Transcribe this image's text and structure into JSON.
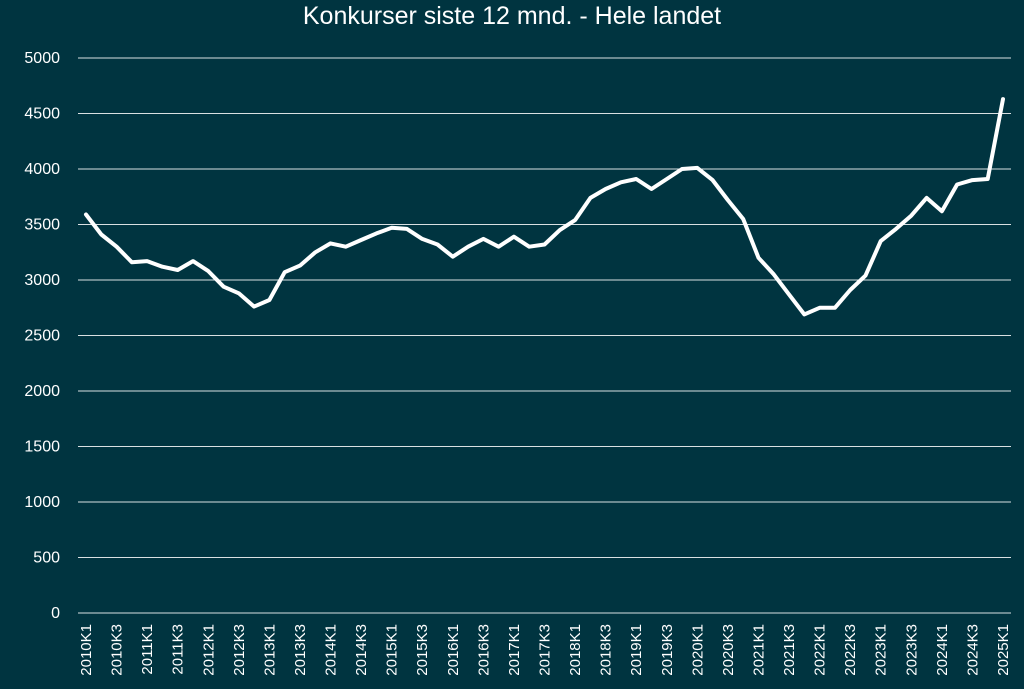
{
  "chart_data": {
    "type": "line",
    "title": "Konkurser siste 12 mnd. - Hele landet",
    "xlabel": "",
    "ylabel": "",
    "ylim": [
      0,
      5000
    ],
    "yticks": [
      0,
      500,
      1000,
      1500,
      2000,
      2500,
      3000,
      3500,
      4000,
      4500,
      5000
    ],
    "grid": true,
    "legend": "none",
    "colors": {
      "background": "#003440",
      "line": "#ffffff",
      "grid": "#ffffff",
      "text": "#ffffff"
    },
    "tick_labels": [
      "2010K1",
      "2010K3",
      "2011K1",
      "2011K3",
      "2012K1",
      "2012K3",
      "2013K1",
      "2013K3",
      "2014K1",
      "2014K3",
      "2015K1",
      "2015K3",
      "2016K1",
      "2016K3",
      "2017K1",
      "2017K3",
      "2018K1",
      "2018K3",
      "2019K1",
      "2019K3",
      "2020K1",
      "2020K3",
      "2021K1",
      "2021K3",
      "2022K1",
      "2022K3",
      "2023K1",
      "2023K3",
      "2024K1",
      "2024K3",
      "2025K1"
    ],
    "categories": [
      "2010K1",
      "2010K2",
      "2010K3",
      "2010K4",
      "2011K1",
      "2011K2",
      "2011K3",
      "2011K4",
      "2012K1",
      "2012K2",
      "2012K3",
      "2012K4",
      "2013K1",
      "2013K2",
      "2013K3",
      "2013K4",
      "2014K1",
      "2014K2",
      "2014K3",
      "2014K4",
      "2015K1",
      "2015K2",
      "2015K3",
      "2015K4",
      "2016K1",
      "2016K2",
      "2016K3",
      "2016K4",
      "2017K1",
      "2017K2",
      "2017K3",
      "2017K4",
      "2018K1",
      "2018K2",
      "2018K3",
      "2018K4",
      "2019K1",
      "2019K2",
      "2019K3",
      "2019K4",
      "2020K1",
      "2020K2",
      "2020K3",
      "2020K4",
      "2021K1",
      "2021K2",
      "2021K3",
      "2021K4",
      "2022K1",
      "2022K2",
      "2022K3",
      "2022K4",
      "2023K1",
      "2023K2",
      "2023K3",
      "2023K4",
      "2024K1",
      "2024K2",
      "2024K3",
      "2024K4",
      "2025K1"
    ],
    "values": [
      3590,
      3410,
      3300,
      3160,
      3170,
      3120,
      3090,
      3170,
      3080,
      2940,
      2880,
      2760,
      2820,
      3070,
      3130,
      3250,
      3330,
      3300,
      3360,
      3420,
      3470,
      3460,
      3370,
      3320,
      3210,
      3300,
      3370,
      3300,
      3390,
      3300,
      3320,
      3450,
      3540,
      3740,
      3820,
      3880,
      3910,
      3820,
      3910,
      4000,
      4010,
      3900,
      3720,
      3550,
      3200,
      3050,
      2870,
      2690,
      2750,
      2750,
      2910,
      3040,
      3350,
      3460,
      3580,
      3740,
      3620,
      3860,
      3900,
      3910,
      4630
    ]
  }
}
